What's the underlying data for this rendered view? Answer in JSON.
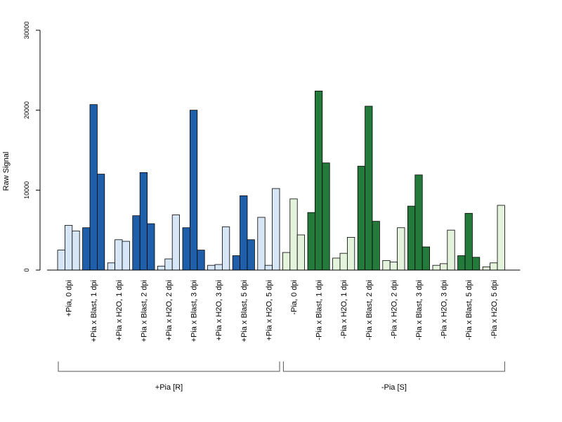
{
  "chart_data": {
    "type": "bar",
    "ylabel": "Raw Signal",
    "ylim": [
      0,
      30000
    ],
    "yticks": [
      0,
      10000,
      20000,
      30000
    ],
    "grid": false,
    "categories": [
      "+Pia, 0 dpi",
      "+Pia x Blast, 1 dpi",
      "+Pia x H2O, 1 dpi",
      "+Pia x Blast, 2 dpi",
      "+Pia x H2O, 2 dpi",
      "+Pia x Blast, 3 dpi",
      "+Pia x H2O, 3 dpi",
      "+Pia x Blast, 5 dpi",
      "+Pia x H2O, 5 dpi",
      "-Pia, 0 dpi",
      "-Pia x Blast, 1 dpi",
      "-Pia x H2O, 1 dpi",
      "-Pia x Blast, 2 dpi",
      "-Pia x H2O, 2 dpi",
      "-Pia x Blast, 3 dpi",
      "-Pia x H2O, 3 dpi",
      "-Pia x Blast, 5 dpi",
      "-Pia x H2O, 5 dpi"
    ],
    "replicate_values": [
      [
        2500,
        5600,
        4900
      ],
      [
        5300,
        20700,
        12000
      ],
      [
        900,
        3800,
        3600
      ],
      [
        6800,
        12200,
        5800
      ],
      [
        500,
        1400,
        6900
      ],
      [
        5300,
        20000,
        2500
      ],
      [
        600,
        700,
        5400
      ],
      [
        1800,
        9300,
        3800
      ],
      [
        6600,
        600,
        10200
      ],
      [
        2200,
        8900,
        4400
      ],
      [
        7200,
        22400,
        13400
      ],
      [
        1500,
        2100,
        4100
      ],
      [
        13000,
        20500,
        6100
      ],
      [
        1200,
        1000,
        5300
      ],
      [
        8000,
        11900,
        2900
      ],
      [
        600,
        800,
        5000
      ],
      [
        1800,
        7100,
        1600
      ],
      [
        400,
        900,
        8100
      ]
    ],
    "groups": [
      {
        "label": "+Pia [R]"
      },
      {
        "label": "-Pia [S]"
      }
    ],
    "colors": {
      "light_blue": "#d6e6f6",
      "dark_blue": "#1f5ea8",
      "light_green": "#e3f3dc",
      "dark_green": "#237a3b",
      "stroke": "#000000",
      "axis": "#000000",
      "bracket": "#555555"
    }
  }
}
